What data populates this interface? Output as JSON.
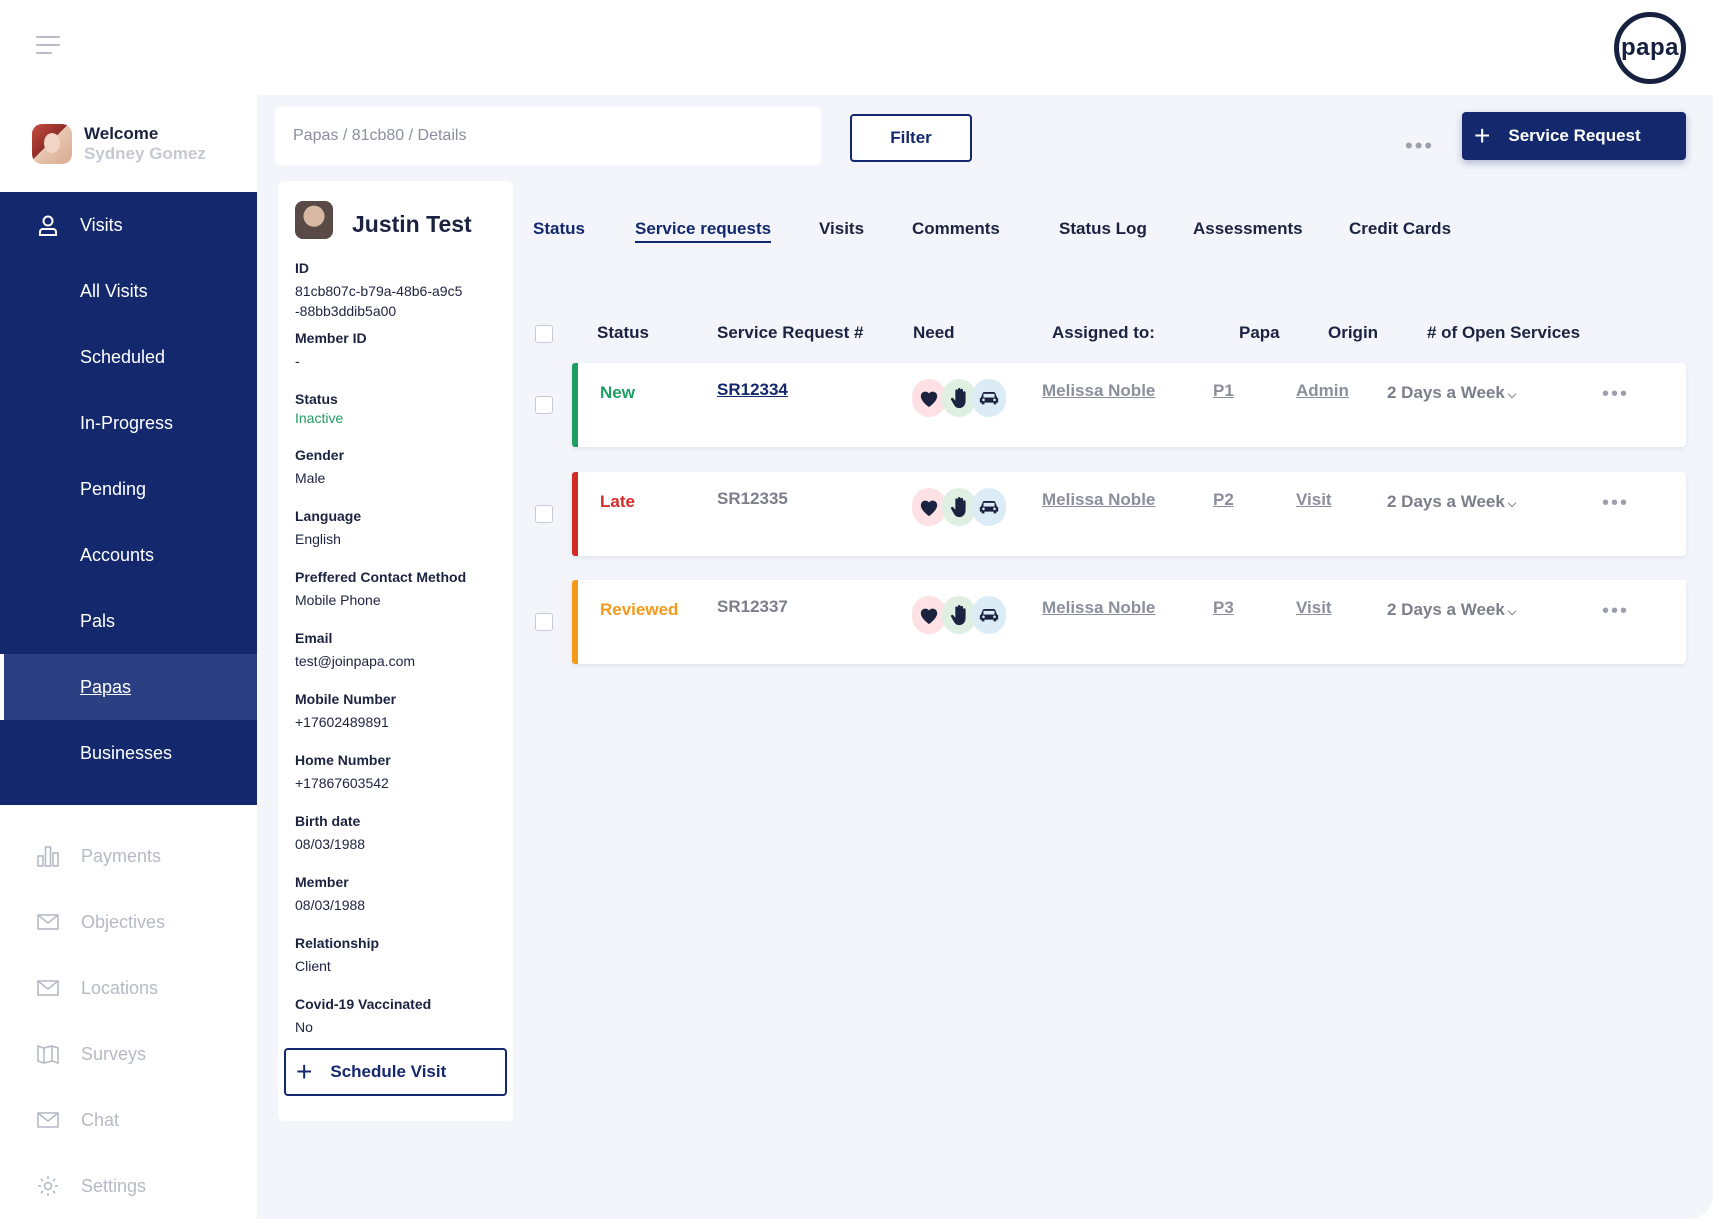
{
  "brand": {
    "logo_text": "papa"
  },
  "sidebar": {
    "welcome_title": "Welcome",
    "welcome_name": "Sydney Gomez",
    "primary": [
      {
        "label": "Visits",
        "icon": "user-icon"
      },
      {
        "label": "All Visits"
      },
      {
        "label": "Scheduled"
      },
      {
        "label": "In-Progress"
      },
      {
        "label": "Pending"
      },
      {
        "label": "Accounts"
      },
      {
        "label": "Pals"
      },
      {
        "label": "Papas",
        "active": true
      },
      {
        "label": "Businesses"
      }
    ],
    "secondary": [
      {
        "label": "Payments",
        "icon": "bar-chart-icon"
      },
      {
        "label": "Objectives",
        "icon": "mail-icon"
      },
      {
        "label": "Locations",
        "icon": "mail-icon"
      },
      {
        "label": "Surveys",
        "icon": "map-icon"
      },
      {
        "label": "Chat",
        "icon": "mail-icon"
      },
      {
        "label": "Settings",
        "icon": "gear-icon"
      }
    ]
  },
  "header": {
    "breadcrumb": "Papas / 81cb80 / Details",
    "filter_label": "Filter",
    "more_label": "•••",
    "service_request_label": "Service Request"
  },
  "profile": {
    "name": "Justin Test",
    "fields": [
      {
        "label": "ID",
        "value": "81cb807c-b79a-48b6-a9c5 -88bb3ddib5a00"
      },
      {
        "label": "Member ID",
        "value": "-"
      },
      {
        "label": "Status",
        "value": "Inactive"
      },
      {
        "label": "Gender",
        "value": "Male"
      },
      {
        "label": "Language",
        "value": "English"
      },
      {
        "label": "Preffered Contact Method",
        "value": "Mobile Phone"
      },
      {
        "label": "Email",
        "value": "test@joinpapa.com"
      },
      {
        "label": "Mobile Number",
        "value": "+17602489891"
      },
      {
        "label": "Home Number",
        "value": "+17867603542"
      },
      {
        "label": "Birth date",
        "value": "08/03/1988"
      },
      {
        "label": "Member",
        "value": "08/03/1988"
      },
      {
        "label": "Relationship",
        "value": "Client"
      },
      {
        "label": "Covid-19 Vaccinated",
        "value": "No"
      }
    ],
    "schedule_label": "Schedule Visit"
  },
  "tabs": [
    "Status",
    "Service requests",
    "Visits",
    "Comments",
    "Status Log",
    "Assessments",
    "Credit Cards"
  ],
  "table": {
    "headers": [
      "Status",
      "Service Request #",
      "Need",
      "Assigned to:",
      "Papa",
      "Origin",
      "# of Open Services"
    ],
    "rows": [
      {
        "status": "New",
        "status_color": "#1f9d63",
        "sr": "SR12334",
        "assigned": "Melissa Noble",
        "papa": "P1",
        "origin": "Admin",
        "frequency": "2 Days a Week",
        "needs": [
          "heart-icon",
          "hand-icon",
          "car-icon"
        ]
      },
      {
        "status": "Late",
        "status_color": "#d32a2a",
        "sr": "SR12335",
        "assigned": "Melissa Noble",
        "papa": "P2",
        "origin": "Visit",
        "frequency": "2 Days a Week",
        "needs": [
          "heart-icon",
          "hand-icon",
          "car-icon"
        ]
      },
      {
        "status": "Reviewed",
        "status_color": "#f59a18",
        "sr": "SR12337",
        "assigned": "Melissa Noble",
        "papa": "P3",
        "origin": "Visit",
        "frequency": "2 Days a Week",
        "needs": [
          "heart-icon",
          "hand-icon",
          "car-icon"
        ]
      }
    ],
    "row_more": "•••"
  },
  "colors": {
    "navy": "#14296d",
    "new": "#1f9d63",
    "late": "#d32a2a",
    "reviewed": "#f59a18"
  }
}
